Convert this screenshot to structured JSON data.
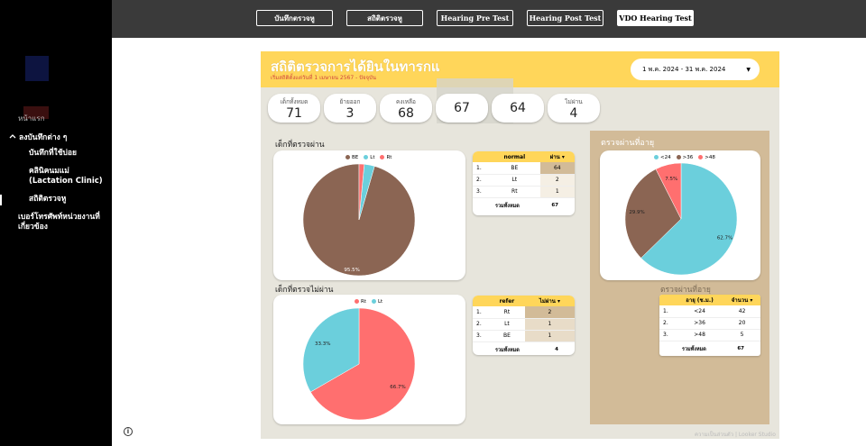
{
  "sidebar": {
    "home_label": "หน้าแรก",
    "group_label": "ลงบันทึกต่าง ๆ",
    "items": [
      {
        "label": "บันทึกที่ใช้บ่อย"
      },
      {
        "label": "คลินิคนมแม่ (Lactation Clinic)"
      },
      {
        "label": "สถิติตรวจหู"
      }
    ],
    "phone_label": "เบอร์โทรศัพท์หน่วยงานที่เกี่ยวข้อง"
  },
  "tabs": [
    {
      "label": "บันทึกตรวจหู"
    },
    {
      "label": "สถิติตรวจหู"
    },
    {
      "label": "Hearing Pre Test"
    },
    {
      "label": "Hearing Post Test"
    },
    {
      "label": "VDO Hearing Test"
    }
  ],
  "report": {
    "title": "สถิติตรวจการได้ยินในทารกแ",
    "subtitle": "เริ่มสถิติตั้งแต่วันที่ 1 เมษายน 2567 - ปัจจุบัน",
    "date_range": "1 พ.ค. 2024 - 31 พ.ค. 2024",
    "stats": [
      {
        "label": "เด็กทั้งหมด",
        "value": "71"
      },
      {
        "label": "ย้ายออก",
        "value": "3"
      },
      {
        "label": "คงเหลือ",
        "value": "68"
      },
      {
        "label": "",
        "value": "67"
      },
      {
        "label": "",
        "value": "64"
      },
      {
        "label": "ไม่ผ่าน",
        "value": "4"
      }
    ],
    "pass_section_title": "เด็กที่ตรวจผ่าน",
    "fail_section_title": "เด็กที่ตรวจไม่ผ่าน",
    "age_section_title": "ตรวจผ่านที่อายุ",
    "age_section_title2": "ตรวจผ่านที่อายุ",
    "normal_table": {
      "headers": [
        "normal",
        "ผ่าน ▾"
      ],
      "rows": [
        {
          "n": "1.",
          "k": "BE",
          "v": "64"
        },
        {
          "n": "2.",
          "k": "Lt",
          "v": "2"
        },
        {
          "n": "3.",
          "k": "Rt",
          "v": "1"
        }
      ],
      "total_label": "รวมทั้งหมด",
      "total": "67"
    },
    "refer_table": {
      "headers": [
        "refer",
        "ไม่ผ่าน ▾"
      ],
      "rows": [
        {
          "n": "1.",
          "k": "Rt",
          "v": "2"
        },
        {
          "n": "2.",
          "k": "Lt",
          "v": "1"
        },
        {
          "n": "3.",
          "k": "BE",
          "v": "1"
        }
      ],
      "total_label": "รวมทั้งหมด",
      "total": "4"
    },
    "age_table": {
      "headers": [
        "อายุ (ช.ม.)",
        "จำนวน ▾"
      ],
      "rows": [
        {
          "n": "1.",
          "k": "<24",
          "v": "42"
        },
        {
          "n": "2.",
          "k": ">36",
          "v": "20"
        },
        {
          "n": "3.",
          "k": ">48",
          "v": "5"
        }
      ],
      "total_label": "รวมทั้งหมด",
      "total": "67"
    },
    "footer_note": "ความเป็นส่วนตัว | Looker Studio"
  },
  "chart_data": [
    {
      "type": "pie",
      "legend": [
        "BE",
        "Lt",
        "Rt"
      ],
      "colors": [
        "#8b6553",
        "#6bcfdc",
        "#ff6f6f"
      ],
      "values": [
        64,
        2,
        1
      ],
      "data_labels": [
        "95.5%",
        "",
        ""
      ]
    },
    {
      "type": "pie",
      "legend": [
        "Rt",
        "Lt"
      ],
      "colors": [
        "#ff6f6f",
        "#6bcfdc"
      ],
      "values": [
        2,
        1
      ],
      "data_labels": [
        "66.7%",
        "33.3%"
      ]
    },
    {
      "type": "pie",
      "legend": [
        "<24",
        ">36",
        ">48"
      ],
      "colors": [
        "#6bcfdc",
        "#8b6553",
        "#ff6f6f"
      ],
      "values": [
        42,
        20,
        5
      ],
      "data_labels": [
        "62.7%",
        "29.9%",
        "7.5%"
      ]
    }
  ]
}
